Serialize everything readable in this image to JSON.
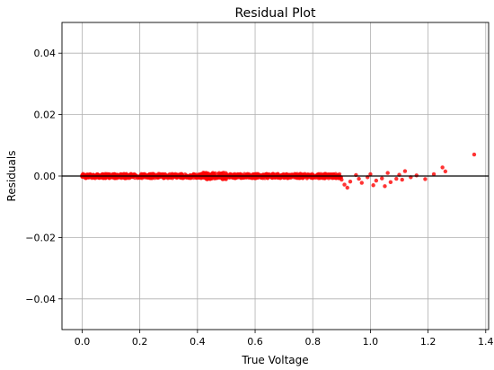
{
  "chart_data": {
    "type": "scatter",
    "title": "Residual Plot",
    "xlabel": "True Voltage",
    "ylabel": "Residuals",
    "xlim": [
      -0.07,
      1.41
    ],
    "ylim": [
      -0.05,
      0.05
    ],
    "xticks": [
      0.0,
      0.2,
      0.4,
      0.6,
      0.8,
      1.0,
      1.2,
      1.4
    ],
    "xtick_labels": [
      "0.0",
      "0.2",
      "0.4",
      "0.6",
      "0.8",
      "1.0",
      "1.2",
      "1.4"
    ],
    "yticks": [
      -0.04,
      -0.02,
      0.0,
      0.02,
      0.04
    ],
    "ytick_labels": [
      "−0.04",
      "−0.02",
      "0.00",
      "0.02",
      "0.04"
    ],
    "grid": true,
    "reference_line": {
      "y": 0.0,
      "color": "#000000"
    },
    "series": [
      {
        "color": "#ff0000",
        "points": [
          [
            0.0,
            0.0002
          ],
          [
            0.02,
            -0.0001
          ],
          [
            0.04,
            0.0003
          ],
          [
            0.06,
            -0.0002
          ],
          [
            0.08,
            0.0004
          ],
          [
            0.1,
            0.0001
          ],
          [
            0.12,
            -0.0003
          ],
          [
            0.14,
            0.0002
          ],
          [
            0.16,
            -0.0001
          ],
          [
            0.18,
            0.0003
          ],
          [
            0.2,
            -0.0002
          ],
          [
            0.22,
            0.0001
          ],
          [
            0.24,
            -0.0003
          ],
          [
            0.26,
            0.0002
          ],
          [
            0.28,
            -0.0001
          ],
          [
            0.3,
            0.0003
          ],
          [
            0.32,
            -0.0002
          ],
          [
            0.34,
            0.0001
          ],
          [
            0.36,
            -0.0003
          ],
          [
            0.38,
            0.0002
          ],
          [
            0.4,
            -0.0001
          ],
          [
            0.42,
            0.0002
          ],
          [
            0.44,
            -0.0004
          ],
          [
            0.46,
            -0.0008
          ],
          [
            0.48,
            -0.0005
          ],
          [
            0.5,
            0.0002
          ],
          [
            0.52,
            -0.0002
          ],
          [
            0.54,
            0.0003
          ],
          [
            0.56,
            -0.0001
          ],
          [
            0.58,
            0.0002
          ],
          [
            0.6,
            0.0005
          ],
          [
            0.62,
            -0.0002
          ],
          [
            0.64,
            0.0003
          ],
          [
            0.66,
            -0.0006
          ],
          [
            0.68,
            0.0001
          ],
          [
            0.7,
            -0.0003
          ],
          [
            0.72,
            0.0002
          ],
          [
            0.74,
            -0.0004
          ],
          [
            0.76,
            0.0001
          ],
          [
            0.78,
            -0.0007
          ],
          [
            0.8,
            -0.0002
          ],
          [
            0.82,
            0.0001
          ],
          [
            0.84,
            -0.0004
          ],
          [
            0.86,
            0.0002
          ],
          [
            0.88,
            -0.0006
          ],
          [
            0.9,
            -0.0012
          ],
          [
            0.91,
            -0.0028
          ],
          [
            0.92,
            -0.0038
          ],
          [
            0.93,
            -0.0018
          ],
          [
            0.95,
            0.0003
          ],
          [
            0.96,
            -0.0009
          ],
          [
            0.97,
            -0.0022
          ],
          [
            0.99,
            -0.0004
          ],
          [
            1.0,
            0.0006
          ],
          [
            1.01,
            -0.003
          ],
          [
            1.02,
            -0.0015
          ],
          [
            1.04,
            -0.0008
          ],
          [
            1.05,
            -0.0033
          ],
          [
            1.06,
            0.001
          ],
          [
            1.07,
            -0.002
          ],
          [
            1.09,
            -0.0009
          ],
          [
            1.1,
            0.0004
          ],
          [
            1.11,
            -0.0012
          ],
          [
            1.12,
            0.0016
          ],
          [
            1.14,
            -0.0004
          ],
          [
            1.16,
            0.0002
          ],
          [
            1.19,
            -0.001
          ],
          [
            1.22,
            0.0006
          ],
          [
            1.25,
            0.0028
          ],
          [
            1.26,
            0.0015
          ],
          [
            1.36,
            0.007
          ]
        ]
      }
    ]
  }
}
